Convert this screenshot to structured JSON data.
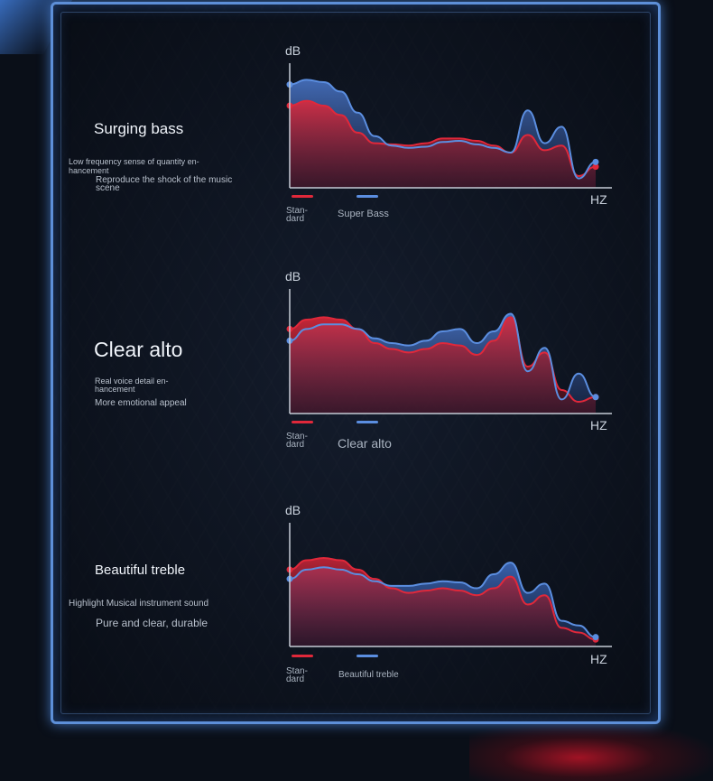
{
  "colors": {
    "frame": "#5d8fd8",
    "red_series": "#e0283a",
    "blue_series": "#5b8ee0",
    "background": "#0a0f18"
  },
  "sections": [
    {
      "title": "Surging bass",
      "desc1": "Low frequency sense of quantity en-hancement",
      "desc2": "Reproduce the shock of the music scene",
      "y_label": "dB",
      "x_label": "HZ",
      "legend_red": "Stan-dard",
      "legend_blue": "Super Bass",
      "chart_data": {
        "type": "area",
        "series": [
          {
            "name": "Stan-dard",
            "color": "#e0283a",
            "values": [
              0.7,
              0.74,
              0.7,
              0.62,
              0.47,
              0.38,
              0.37,
              0.36,
              0.38,
              0.42,
              0.42,
              0.4,
              0.36,
              0.3,
              0.45,
              0.32,
              0.36,
              0.1,
              0.18
            ]
          },
          {
            "name": "Super Bass",
            "color": "#5b8ee0",
            "values": [
              0.88,
              0.92,
              0.9,
              0.82,
              0.64,
              0.44,
              0.36,
              0.34,
              0.35,
              0.39,
              0.4,
              0.37,
              0.34,
              0.3,
              0.66,
              0.38,
              0.52,
              0.08,
              0.22
            ]
          }
        ]
      }
    },
    {
      "title": "Clear alto",
      "desc1": "Real voice detail en-hancement",
      "desc2": "More emotional appeal",
      "y_label": "dB",
      "x_label": "HZ",
      "legend_red": "Stan-dard",
      "legend_blue": "Clear alto",
      "chart_data": {
        "type": "area",
        "series": [
          {
            "name": "Stan-dard",
            "color": "#e0283a",
            "values": [
              0.72,
              0.8,
              0.82,
              0.8,
              0.72,
              0.6,
              0.55,
              0.52,
              0.55,
              0.6,
              0.58,
              0.5,
              0.62,
              0.82,
              0.4,
              0.52,
              0.2,
              0.1,
              0.14
            ]
          },
          {
            "name": "Clear alto",
            "color": "#5b8ee0",
            "values": [
              0.62,
              0.72,
              0.76,
              0.76,
              0.72,
              0.64,
              0.6,
              0.58,
              0.62,
              0.7,
              0.72,
              0.6,
              0.7,
              0.85,
              0.36,
              0.56,
              0.12,
              0.34,
              0.14
            ]
          }
        ]
      }
    },
    {
      "title": "Beautiful treble",
      "desc1": "Highlight Musical instrument sound",
      "desc2": "Pure and clear, durable",
      "y_label": "dB",
      "x_label": "HZ",
      "legend_red": "Stan-dard",
      "legend_blue": "Beautiful treble",
      "chart_data": {
        "type": "area",
        "series": [
          {
            "name": "Stan-dard",
            "color": "#e0283a",
            "values": [
              0.66,
              0.74,
              0.76,
              0.74,
              0.66,
              0.58,
              0.5,
              0.46,
              0.48,
              0.5,
              0.48,
              0.44,
              0.5,
              0.6,
              0.36,
              0.44,
              0.16,
              0.12,
              0.06
            ]
          },
          {
            "name": "Beautiful treble",
            "color": "#5b8ee0",
            "values": [
              0.58,
              0.66,
              0.68,
              0.66,
              0.62,
              0.56,
              0.52,
              0.52,
              0.54,
              0.56,
              0.55,
              0.5,
              0.62,
              0.72,
              0.46,
              0.54,
              0.22,
              0.18,
              0.08
            ]
          }
        ]
      }
    }
  ]
}
